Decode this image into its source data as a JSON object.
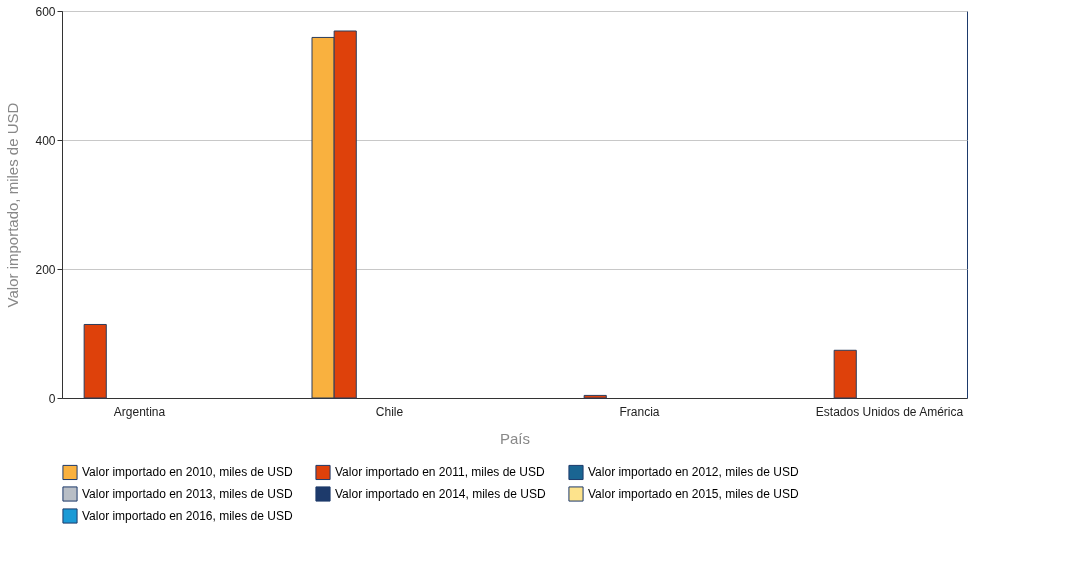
{
  "chart_data": {
    "type": "bar",
    "xlabel": "País",
    "ylabel": "Valor importado, miles de USD",
    "categories": [
      "Argentina",
      "Chile",
      "Francia",
      "Estados Unidos de América"
    ],
    "series": [
      {
        "name": "Valor importado en 2010, miles de USD",
        "color": "#f9b13f",
        "values": [
          null,
          559,
          null,
          null
        ]
      },
      {
        "name": "Valor importado en 2011, miles de USD",
        "color": "#de410b",
        "values": [
          114,
          569,
          4,
          74
        ]
      },
      {
        "name": "Valor importado en 2012, miles de USD",
        "color": "#1a6592",
        "values": [
          null,
          null,
          null,
          null
        ]
      },
      {
        "name": "Valor importado en 2013, miles de USD",
        "color": "#b8bec6",
        "values": [
          null,
          null,
          null,
          null
        ]
      },
      {
        "name": "Valor importado en 2014, miles de USD",
        "color": "#1d3a6b",
        "values": [
          null,
          null,
          null,
          null
        ]
      },
      {
        "name": "Valor importado en 2015, miles de USD",
        "color": "#fde38c",
        "values": [
          null,
          null,
          null,
          null
        ]
      },
      {
        "name": "Valor importado en 2016, miles de USD",
        "color": "#1b9ad6",
        "values": [
          null,
          null,
          null,
          null
        ]
      }
    ],
    "ylim": [
      0,
      600
    ],
    "yticks": [
      0,
      200,
      400,
      600
    ],
    "grid": "y",
    "legend": "bottom"
  }
}
